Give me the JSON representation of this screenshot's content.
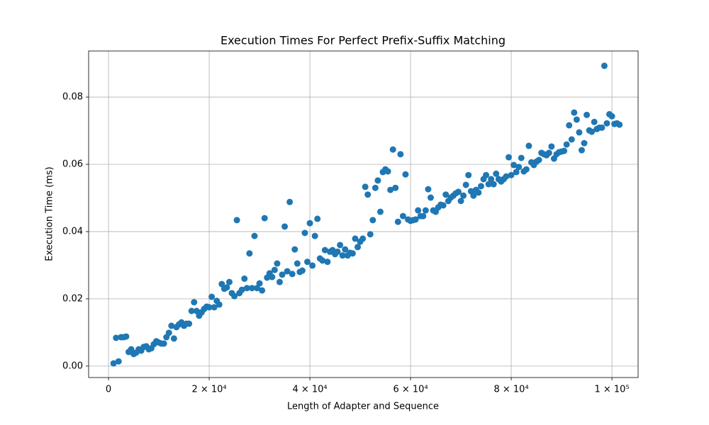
{
  "chart_data": {
    "type": "scatter",
    "title": "Execution Times For Perfect Prefix-Suffix Matching",
    "x_label": "Length of Adapter and Sequence",
    "y_label": "Execution Time (ms)",
    "color": "#1f77b4",
    "grid": true,
    "xlim": [
      -3950,
      105200
    ],
    "ylim": [
      -0.0034,
      0.0937
    ],
    "xticks": [
      0,
      {
        "value": 20000,
        "label": "2 × 10⁴"
      },
      {
        "value": 40000,
        "label": "4 × 10⁴"
      },
      {
        "value": 60000,
        "label": "6 × 10⁴"
      },
      {
        "value": 80000,
        "label": "8 × 10⁴"
      },
      {
        "value": 100000,
        "label": "1 × 10⁵"
      }
    ],
    "yticks": [
      {
        "value": 0,
        "label": "0.00"
      },
      0.02,
      0.04,
      0.06,
      0.08
    ],
    "x": [
      1000,
      1500,
      2000,
      2500,
      3000,
      3500,
      4000,
      4500,
      5000,
      5500,
      6000,
      6500,
      7000,
      7500,
      8000,
      8500,
      9000,
      9500,
      10000,
      10500,
      11000,
      11500,
      12000,
      12500,
      13000,
      13500,
      14000,
      14500,
      15000,
      15500,
      16000,
      16500,
      17000,
      17500,
      18000,
      18500,
      19000,
      19500,
      20000,
      20500,
      21000,
      21500,
      22000,
      22500,
      23000,
      23500,
      24000,
      24500,
      25000,
      25500,
      26000,
      26500,
      27000,
      27500,
      28000,
      28500,
      29000,
      29500,
      30000,
      30500,
      31000,
      31500,
      32000,
      32500,
      33000,
      33500,
      34000,
      34500,
      35000,
      35500,
      36000,
      36500,
      37000,
      37500,
      38000,
      38500,
      39000,
      39500,
      40000,
      40500,
      41000,
      41500,
      42000,
      42500,
      43000,
      43500,
      44000,
      44500,
      45000,
      45500,
      46000,
      46500,
      47000,
      47500,
      48000,
      48500,
      49000,
      49500,
      50000,
      50500,
      51000,
      51500,
      52000,
      52500,
      53000,
      53500,
      54000,
      54500,
      55000,
      55500,
      56000,
      56500,
      57000,
      57500,
      58000,
      58500,
      59000,
      59500,
      60000,
      60500,
      61000,
      61500,
      62000,
      62500,
      63000,
      63500,
      64000,
      64500,
      65000,
      65500,
      66000,
      66500,
      67000,
      67500,
      68000,
      68500,
      69000,
      69500,
      70000,
      70500,
      71000,
      71500,
      72000,
      72500,
      73000,
      73500,
      74000,
      74500,
      75000,
      75500,
      76000,
      76500,
      77000,
      77500,
      78000,
      78500,
      79000,
      79500,
      80000,
      80500,
      81000,
      81500,
      82000,
      82500,
      83000,
      83500,
      84000,
      84500,
      85000,
      85500,
      86000,
      86500,
      87000,
      87500,
      88000,
      88500,
      89000,
      89500,
      90000,
      90500,
      91000,
      91500,
      92000,
      92500,
      93000,
      93500,
      94000,
      94500,
      95000,
      95500,
      96000,
      96500,
      97000,
      97500,
      98000,
      98500,
      99000,
      99500,
      100000,
      100500,
      101000,
      101500
    ],
    "values": [
      0.0008,
      0.0084,
      0.0014,
      0.0086,
      0.0086,
      0.0088,
      0.0042,
      0.005,
      0.0036,
      0.004,
      0.005,
      0.0046,
      0.0057,
      0.0059,
      0.005,
      0.0053,
      0.0065,
      0.0074,
      0.007,
      0.0067,
      0.0067,
      0.0086,
      0.0099,
      0.012,
      0.0082,
      0.0116,
      0.0124,
      0.013,
      0.012,
      0.0126,
      0.0126,
      0.0164,
      0.019,
      0.0164,
      0.015,
      0.016,
      0.017,
      0.0177,
      0.0175,
      0.0206,
      0.0175,
      0.0194,
      0.0183,
      0.0244,
      0.023,
      0.0234,
      0.025,
      0.0217,
      0.0208,
      0.0434,
      0.0217,
      0.0227,
      0.026,
      0.0232,
      0.0335,
      0.0232,
      0.0387,
      0.0232,
      0.0246,
      0.0225,
      0.044,
      0.0263,
      0.0276,
      0.0265,
      0.0286,
      0.0305,
      0.025,
      0.0272,
      0.0415,
      0.0282,
      0.0488,
      0.0274,
      0.0347,
      0.0305,
      0.028,
      0.0284,
      0.0396,
      0.031,
      0.0425,
      0.0299,
      0.0387,
      0.0438,
      0.032,
      0.0314,
      0.0345,
      0.031,
      0.034,
      0.0345,
      0.0333,
      0.034,
      0.036,
      0.0329,
      0.0347,
      0.0329,
      0.0337,
      0.0335,
      0.0379,
      0.0354,
      0.037,
      0.0379,
      0.0533,
      0.051,
      0.0392,
      0.0434,
      0.053,
      0.0552,
      0.0459,
      0.0577,
      0.0585,
      0.0579,
      0.0524,
      0.0644,
      0.053,
      0.0429,
      0.063,
      0.0446,
      0.057,
      0.0436,
      0.0432,
      0.0434,
      0.0436,
      0.0463,
      0.0446,
      0.0446,
      0.0463,
      0.0526,
      0.0501,
      0.0463,
      0.0459,
      0.0472,
      0.048,
      0.0478,
      0.051,
      0.0491,
      0.0501,
      0.0507,
      0.0514,
      0.0518,
      0.0491,
      0.0507,
      0.0539,
      0.0568,
      0.052,
      0.0507,
      0.0524,
      0.0516,
      0.0535,
      0.0556,
      0.0568,
      0.0541,
      0.0556,
      0.0541,
      0.0572,
      0.0556,
      0.0549,
      0.0556,
      0.0564,
      0.0621,
      0.0568,
      0.0598,
      0.0577,
      0.0592,
      0.0619,
      0.0579,
      0.0585,
      0.0655,
      0.0606,
      0.0598,
      0.0608,
      0.0613,
      0.0634,
      0.063,
      0.0627,
      0.0634,
      0.0653,
      0.0617,
      0.063,
      0.0636,
      0.0638,
      0.064,
      0.0659,
      0.0716,
      0.0674,
      0.0754,
      0.0733,
      0.0695,
      0.0642,
      0.0663,
      0.0747,
      0.0701,
      0.0697,
      0.0726,
      0.0705,
      0.0709,
      0.0709,
      0.0893,
      0.0722,
      0.0749,
      0.0743,
      0.072,
      0.0722,
      0.0718
    ]
  }
}
